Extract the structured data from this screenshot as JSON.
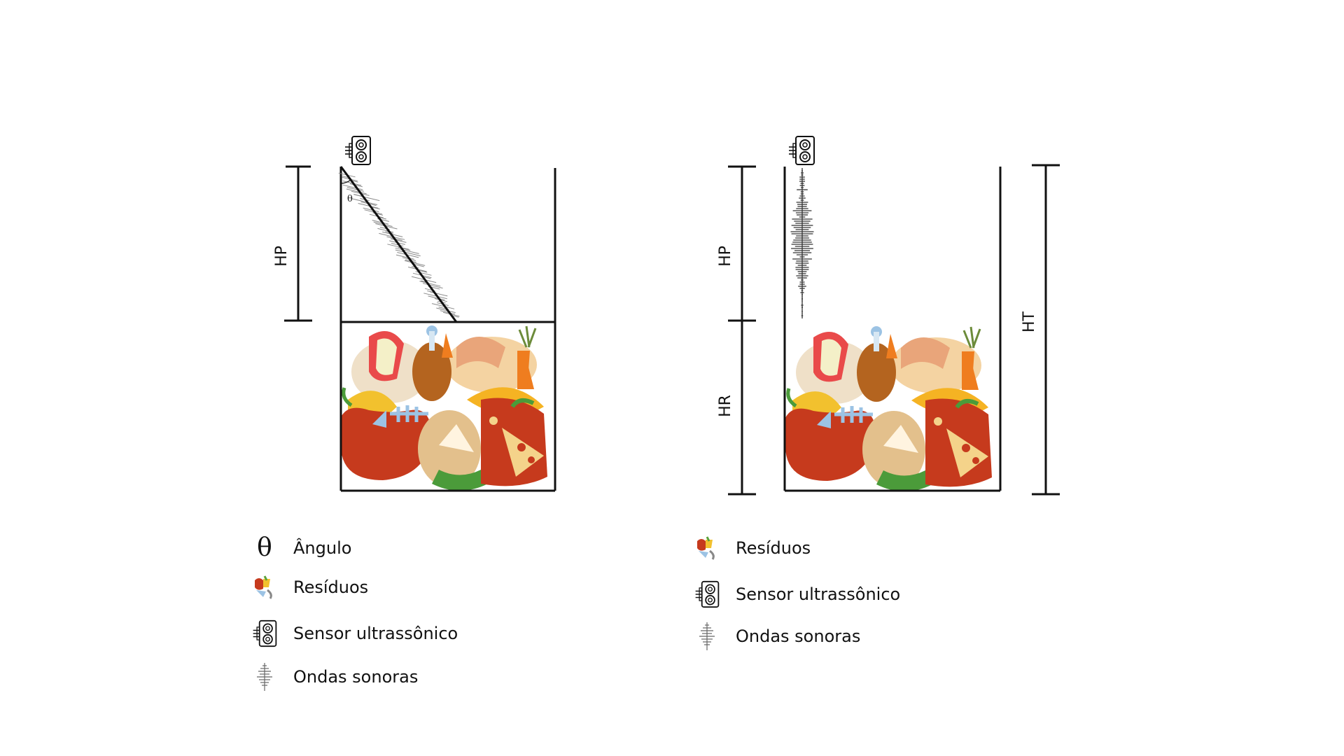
{
  "diagram_left": {
    "dimension_hp": "HP",
    "angle_symbol": "θ"
  },
  "diagram_right": {
    "dimension_hp": "HP",
    "dimension_hr": "HR",
    "dimension_ht": "HT"
  },
  "legend_left": {
    "items": [
      {
        "icon": "theta-icon",
        "symbol": "θ",
        "label": "Ângulo"
      },
      {
        "icon": "waste-icon",
        "label": "Resíduos"
      },
      {
        "icon": "ultrasonic-sensor-icon",
        "label": "Sensor ultrassônico"
      },
      {
        "icon": "sound-waves-icon",
        "label": "Ondas sonoras"
      }
    ]
  },
  "legend_right": {
    "items": [
      {
        "icon": "waste-icon",
        "label": "Resíduos"
      },
      {
        "icon": "ultrasonic-sensor-icon",
        "label": "Sensor ultrassônico"
      },
      {
        "icon": "sound-waves-icon",
        "label": "Ondas sonoras"
      }
    ]
  },
  "colors": {
    "line": "#111111",
    "apple_red": "#c63a1d",
    "banana_yellow": "#f2c12e",
    "carrot_orange": "#ef7d1f",
    "meat_brown": "#b4641f",
    "peel_beige": "#e9c79a",
    "fish_blue": "#9cc3e4",
    "leaf_green": "#5aa33a"
  }
}
